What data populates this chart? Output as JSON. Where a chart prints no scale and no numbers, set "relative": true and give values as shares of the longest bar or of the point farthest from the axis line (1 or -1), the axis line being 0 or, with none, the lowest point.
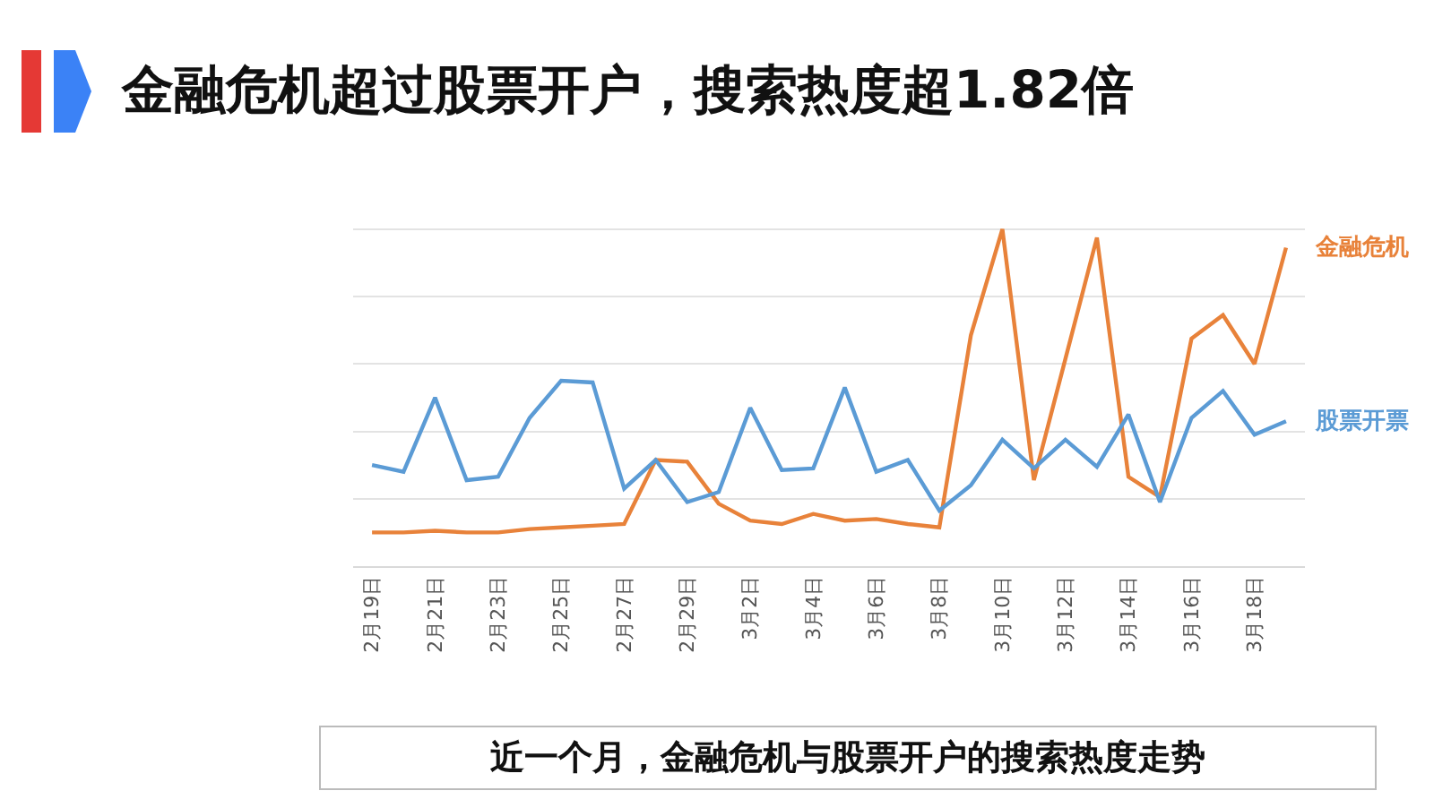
{
  "chart_data": {
    "type": "line",
    "title": "金融危机超过股票开户，搜索热度超1.82倍",
    "relative": true,
    "grid": "y",
    "legend": false,
    "marker": "none",
    "line_style": "solid",
    "categories": [
      "2月19日",
      null,
      "2月21日",
      null,
      "2月23日",
      null,
      "2月25日",
      null,
      "2月27日",
      null,
      "2月29日",
      null,
      "3月2日",
      null,
      "3月4日",
      null,
      "3月6日",
      null,
      "3月8日",
      null,
      "3月10日",
      null,
      "3月12日",
      null,
      "3月14日",
      null,
      "3月16日",
      null,
      "3月18日",
      null
    ],
    "series": [
      {
        "name": "金融危机",
        "color": "#e8823a",
        "values": [
          0.1,
          0.1,
          0.105,
          0.1,
          0.1,
          0.11,
          0.115,
          0.12,
          0.125,
          0.315,
          0.31,
          0.185,
          0.135,
          0.125,
          0.155,
          0.135,
          0.14,
          0.125,
          0.115,
          0.685,
          1,
          0.255,
          0.615,
          0.975,
          0.265,
          0.205,
          0.675,
          0.745,
          0.6,
          0.945
        ]
      },
      {
        "name": "股票开票",
        "color": "#5b9bd5",
        "values": [
          0.3,
          0.28,
          0.5,
          0.255,
          0.265,
          0.44,
          0.55,
          0.545,
          0.23,
          0.315,
          0.19,
          0.22,
          0.47,
          0.285,
          0.29,
          0.53,
          0.28,
          0.315,
          0.165,
          0.24,
          0.375,
          0.29,
          0.375,
          0.295,
          0.45,
          0.19,
          0.44,
          0.52,
          0.39,
          0.43
        ]
      }
    ],
    "annotations": [
      "近一个月，金融危机与股票开户的搜索热度走势"
    ]
  }
}
